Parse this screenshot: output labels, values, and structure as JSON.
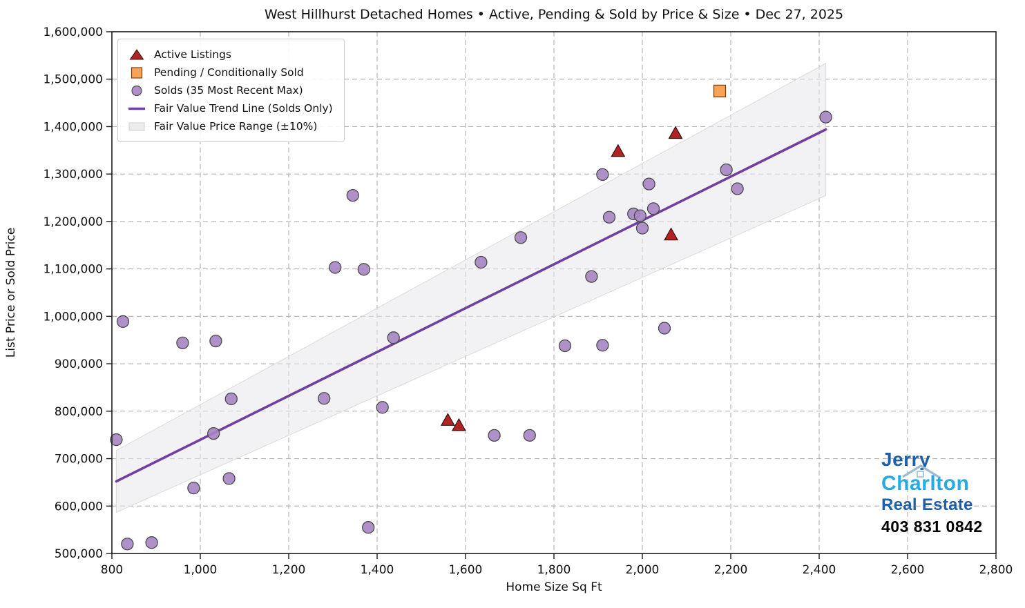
{
  "chart_data": {
    "type": "scatter",
    "title": "West Hillhurst Detached Homes • Active, Pending & Sold by Price & Size • Dec 27, 2025",
    "xlabel": "Home Size Sq Ft",
    "ylabel": "List Price or Sold Price",
    "xlim": [
      800,
      2800
    ],
    "ylim": [
      500000,
      1600000
    ],
    "x_ticks": [
      800,
      1000,
      1200,
      1400,
      1600,
      1800,
      2000,
      2200,
      2400,
      2600,
      2800
    ],
    "y_ticks": [
      500000,
      600000,
      700000,
      800000,
      900000,
      1000000,
      1100000,
      1200000,
      1300000,
      1400000,
      1500000,
      1600000
    ],
    "grid": true,
    "legend_position": "upper left",
    "series": [
      {
        "name": "Active Listings",
        "marker": "triangle",
        "color": "#b22222",
        "edge_color": "#2b0a0a",
        "points": [
          [
            1560,
            781000
          ],
          [
            1585,
            770000
          ],
          [
            1945,
            1348000
          ],
          [
            2075,
            1386000
          ],
          [
            2065,
            1172000
          ]
        ]
      },
      {
        "name": "Pending / Conditionally Sold",
        "marker": "square",
        "color": "#f9a357",
        "edge_color": "#7a3e10",
        "points": [
          [
            2175,
            1475000
          ]
        ]
      },
      {
        "name": "Solds (35 Most Recent Max)",
        "marker": "circle",
        "color": "#a585c2",
        "edge_color": "#4a4a4a",
        "points": [
          [
            810,
            740000
          ],
          [
            835,
            520000
          ],
          [
            890,
            523000
          ],
          [
            825,
            989000
          ],
          [
            960,
            944000
          ],
          [
            1035,
            948000
          ],
          [
            985,
            638000
          ],
          [
            1030,
            753000
          ],
          [
            1065,
            658000
          ],
          [
            1070,
            826000
          ],
          [
            1280,
            827000
          ],
          [
            1380,
            555000
          ],
          [
            1412,
            808000
          ],
          [
            1437,
            955000
          ],
          [
            1345,
            1255000
          ],
          [
            1305,
            1103000
          ],
          [
            1370,
            1099000
          ],
          [
            1635,
            1114000
          ],
          [
            1725,
            1166000
          ],
          [
            1665,
            749000
          ],
          [
            1745,
            749000
          ],
          [
            1825,
            938000
          ],
          [
            1885,
            1084000
          ],
          [
            1910,
            939000
          ],
          [
            1910,
            1299000
          ],
          [
            1925,
            1209000
          ],
          [
            1980,
            1216000
          ],
          [
            1995,
            1212000
          ],
          [
            2025,
            1227000
          ],
          [
            2000,
            1186000
          ],
          [
            2015,
            1279000
          ],
          [
            2050,
            975000
          ],
          [
            2190,
            1309000
          ],
          [
            2215,
            1269000
          ],
          [
            2415,
            1420000
          ]
        ]
      }
    ],
    "trend_line": {
      "name": "Fair Value Trend Line (Solds Only)",
      "color": "#7040a0",
      "x": [
        810,
        2415
      ],
      "y": [
        652000,
        1394000
      ]
    },
    "band": {
      "name": "Fair Value Price Range (±10%)",
      "pct": 10,
      "color": "#e8e6e9",
      "edge_color": "#d8d8d8"
    }
  },
  "branding": {
    "line1": "Jerry",
    "line2": "Charlton",
    "line3": "Real Estate",
    "phone": "403 831 0842",
    "dark_blue": "#1e5fa8",
    "light_blue": "#29aae1"
  }
}
